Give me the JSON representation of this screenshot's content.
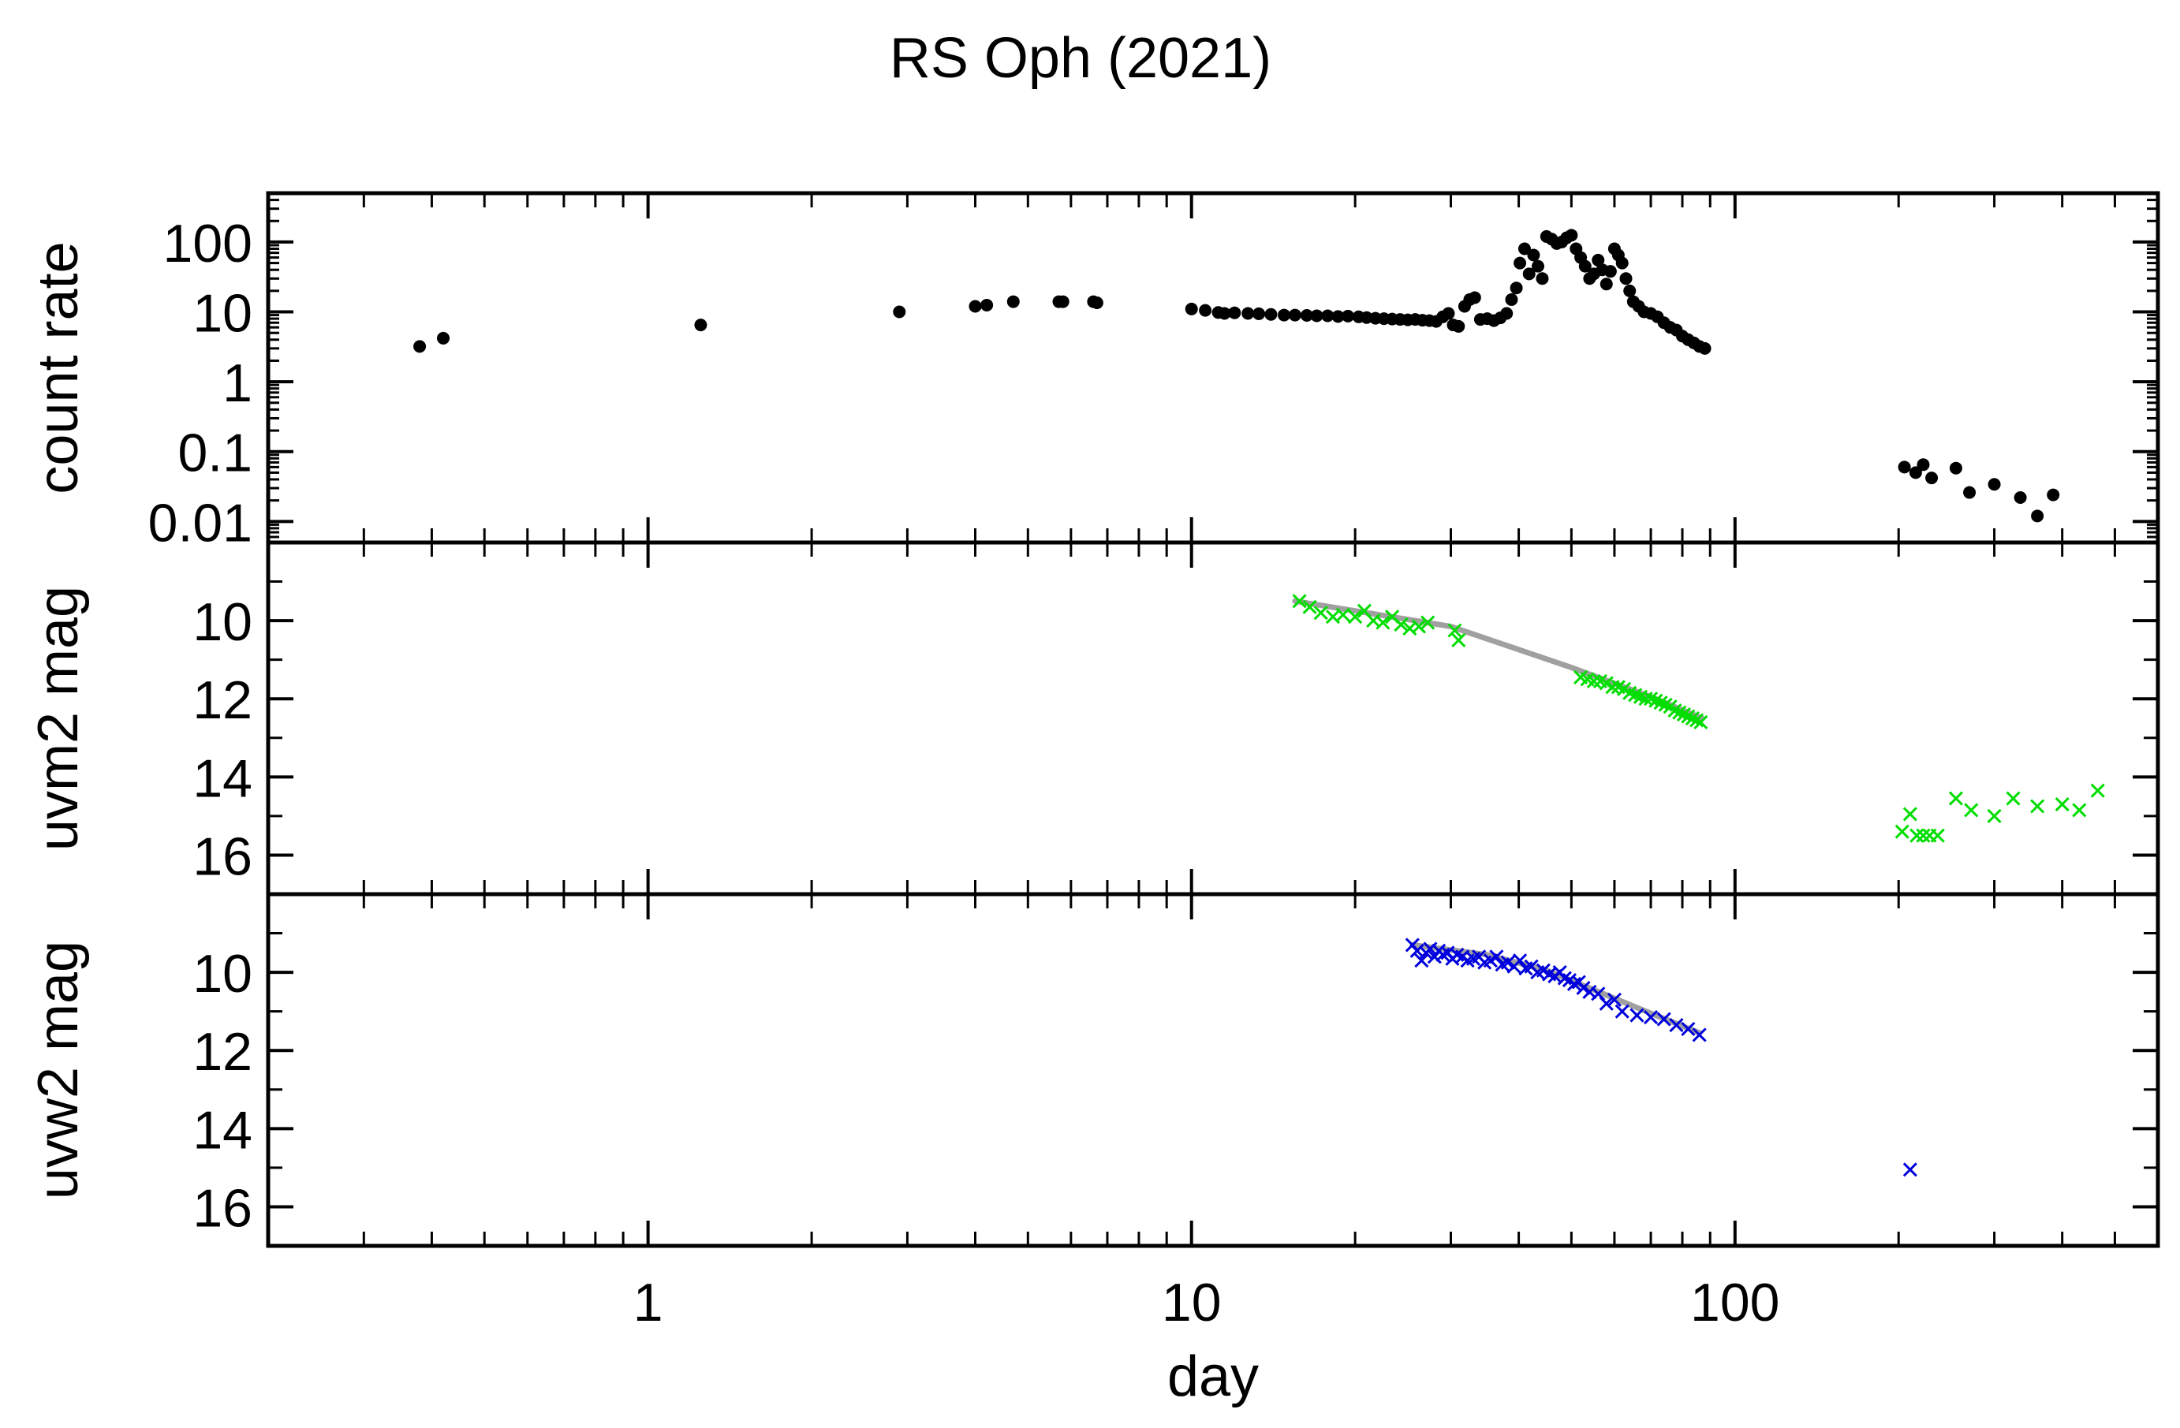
{
  "chart_data": {
    "title": "RS Oph (2021)",
    "xlabel": "day",
    "x_scale": "log",
    "xlim": [
      0.2,
      600
    ],
    "x_tick_labels": [
      "1",
      "10",
      "100"
    ],
    "panels": [
      {
        "id": "count",
        "type": "scatter",
        "ylabel": "count rate",
        "y_scale": "log",
        "ylim": [
          0.005,
          500
        ],
        "y_tick_labels": [
          "100",
          "10",
          "1",
          "0.1",
          "0.01"
        ],
        "series": [
          {
            "color": "#000000",
            "marker": "dot",
            "points": [
              [
                0.38,
                3.2
              ],
              [
                0.42,
                4.2
              ],
              [
                1.25,
                6.5
              ],
              [
                2.9,
                10
              ],
              [
                4.0,
                12
              ],
              [
                4.2,
                12.5
              ],
              [
                4.7,
                14
              ],
              [
                5.7,
                14
              ],
              [
                5.8,
                14
              ],
              [
                6.6,
                14
              ],
              [
                6.7,
                13.5
              ],
              [
                10.0,
                11
              ],
              [
                10.6,
                10.5
              ],
              [
                11.2,
                9.8
              ],
              [
                11.5,
                9.5
              ],
              [
                12.0,
                9.7
              ],
              [
                12.7,
                9.5
              ],
              [
                13.3,
                9.4
              ],
              [
                14.0,
                9.2
              ],
              [
                14.8,
                9.0
              ],
              [
                15.5,
                9.0
              ],
              [
                16.3,
                8.9
              ],
              [
                17.0,
                8.8
              ],
              [
                17.8,
                8.8
              ],
              [
                18.6,
                8.6
              ],
              [
                19.4,
                8.7
              ],
              [
                20.3,
                8.5
              ],
              [
                21.0,
                8.3
              ],
              [
                21.8,
                8.1
              ],
              [
                22.6,
                8.0
              ],
              [
                23.4,
                7.9
              ],
              [
                24.2,
                7.8
              ],
              [
                25.0,
                7.7
              ],
              [
                25.8,
                7.8
              ],
              [
                26.6,
                7.6
              ],
              [
                27.4,
                7.5
              ],
              [
                28.2,
                7.3
              ],
              [
                29.0,
                8.5
              ],
              [
                29.7,
                9.5
              ],
              [
                30.3,
                6.5
              ],
              [
                31.0,
                6.2
              ],
              [
                31.8,
                12
              ],
              [
                32.5,
                15
              ],
              [
                33.2,
                16
              ],
              [
                34.0,
                7.8
              ],
              [
                35.0,
                8.0
              ],
              [
                36.0,
                7.5
              ],
              [
                37.0,
                8.2
              ],
              [
                38.0,
                9.5
              ],
              [
                38.8,
                15
              ],
              [
                39.6,
                22
              ],
              [
                40.2,
                50
              ],
              [
                41.0,
                80
              ],
              [
                41.8,
                35
              ],
              [
                42.6,
                65
              ],
              [
                43.4,
                45
              ],
              [
                44.2,
                30
              ],
              [
                45.0,
                120
              ],
              [
                46.0,
                110
              ],
              [
                47.0,
                95
              ],
              [
                48.0,
                100
              ],
              [
                49.0,
                115
              ],
              [
                50.0,
                125
              ],
              [
                51.0,
                80
              ],
              [
                52.0,
                60
              ],
              [
                53.0,
                45
              ],
              [
                54.0,
                30
              ],
              [
                55.0,
                35
              ],
              [
                56.0,
                55
              ],
              [
                57.0,
                40
              ],
              [
                58.0,
                25
              ],
              [
                59.0,
                38
              ],
              [
                60.0,
                80
              ],
              [
                61.0,
                65
              ],
              [
                62.0,
                50
              ],
              [
                63.0,
                30
              ],
              [
                64.0,
                20
              ],
              [
                65.0,
                14
              ],
              [
                66.5,
                12
              ],
              [
                68.0,
                10
              ],
              [
                70.0,
                9.5
              ],
              [
                72.0,
                8.5
              ],
              [
                74.0,
                7.0
              ],
              [
                76.0,
                6.0
              ],
              [
                78.0,
                5.5
              ],
              [
                80.0,
                4.5
              ],
              [
                82.0,
                4.0
              ],
              [
                84.0,
                3.6
              ],
              [
                86.0,
                3.2
              ],
              [
                88.0,
                3.0
              ],
              [
                205,
                0.06
              ],
              [
                215,
                0.05
              ],
              [
                222,
                0.065
              ],
              [
                230,
                0.042
              ],
              [
                255,
                0.058
              ],
              [
                270,
                0.026
              ],
              [
                300,
                0.034
              ],
              [
                335,
                0.022
              ],
              [
                360,
                0.012
              ],
              [
                385,
                0.024
              ]
            ]
          }
        ]
      },
      {
        "id": "uvm2",
        "type": "scatter",
        "ylabel": "uvm2 mag",
        "y_inverted": true,
        "ylim": [
          8,
          17
        ],
        "y_tick_labels": [
          "10",
          "12",
          "14",
          "16"
        ],
        "series": [
          {
            "color": "#00dd00",
            "marker": "x",
            "points": [
              [
                15.8,
                9.5
              ],
              [
                16.5,
                9.65
              ],
              [
                17.3,
                9.8
              ],
              [
                18.2,
                9.9
              ],
              [
                19.0,
                9.85
              ],
              [
                20.0,
                9.9
              ],
              [
                20.8,
                9.75
              ],
              [
                21.6,
                10.0
              ],
              [
                22.5,
                10.05
              ],
              [
                23.4,
                9.9
              ],
              [
                24.3,
                10.1
              ],
              [
                25.2,
                10.2
              ],
              [
                26.2,
                10.15
              ],
              [
                27.2,
                10.05
              ],
              [
                30.5,
                10.25
              ],
              [
                31.0,
                10.5
              ],
              [
                52.0,
                11.45
              ],
              [
                53.5,
                11.5
              ],
              [
                55.0,
                11.55
              ],
              [
                56.5,
                11.55
              ],
              [
                58.0,
                11.6
              ],
              [
                59.5,
                11.7
              ],
              [
                61.0,
                11.7
              ],
              [
                62.5,
                11.75
              ],
              [
                64.0,
                11.85
              ],
              [
                65.5,
                11.9
              ],
              [
                67.0,
                11.95
              ],
              [
                68.5,
                12.0
              ],
              [
                70.0,
                12.0
              ],
              [
                71.5,
                12.05
              ],
              [
                73.0,
                12.1
              ],
              [
                74.5,
                12.15
              ],
              [
                76.0,
                12.2
              ],
              [
                77.5,
                12.3
              ],
              [
                79.0,
                12.35
              ],
              [
                80.5,
                12.4
              ],
              [
                82.0,
                12.45
              ],
              [
                83.5,
                12.5
              ],
              [
                85.0,
                12.55
              ],
              [
                86.5,
                12.6
              ],
              [
                203,
                15.4
              ],
              [
                210,
                14.95
              ],
              [
                216,
                15.5
              ],
              [
                222,
                15.5
              ],
              [
                228,
                15.5
              ],
              [
                236,
                15.5
              ],
              [
                255,
                14.55
              ],
              [
                272,
                14.85
              ],
              [
                300,
                15.0
              ],
              [
                325,
                14.55
              ],
              [
                360,
                14.75
              ],
              [
                400,
                14.7
              ],
              [
                430,
                14.85
              ],
              [
                465,
                14.35
              ]
            ]
          }
        ],
        "fit": {
          "color": "#a0a0a0",
          "points": [
            [
              15.5,
              9.5
            ],
            [
              30,
              10.15
            ],
            [
              50,
              11.2
            ],
            [
              70,
              11.95
            ],
            [
              87,
              12.5
            ]
          ]
        }
      },
      {
        "id": "uvw2",
        "type": "scatter",
        "ylabel": "uvw2 mag",
        "y_inverted": true,
        "ylim": [
          8,
          17
        ],
        "y_tick_labels": [
          "10",
          "12",
          "14",
          "16"
        ],
        "series": [
          {
            "color": "#0000dd",
            "marker": "x",
            "points": [
              [
                25.5,
                9.3
              ],
              [
                26.0,
                9.45
              ],
              [
                26.5,
                9.7
              ],
              [
                27.0,
                9.5
              ],
              [
                27.5,
                9.4
              ],
              [
                28.0,
                9.6
              ],
              [
                28.5,
                9.45
              ],
              [
                29.0,
                9.55
              ],
              [
                29.6,
                9.5
              ],
              [
                30.2,
                9.65
              ],
              [
                30.8,
                9.55
              ],
              [
                31.5,
                9.6
              ],
              [
                32.2,
                9.7
              ],
              [
                33.0,
                9.65
              ],
              [
                33.8,
                9.6
              ],
              [
                34.6,
                9.75
              ],
              [
                35.5,
                9.7
              ],
              [
                36.4,
                9.6
              ],
              [
                37.3,
                9.8
              ],
              [
                38.2,
                9.75
              ],
              [
                39.2,
                9.85
              ],
              [
                40.2,
                9.7
              ],
              [
                41.2,
                9.9
              ],
              [
                42.2,
                9.85
              ],
              [
                43.3,
                10.0
              ],
              [
                44.4,
                9.95
              ],
              [
                45.5,
                10.05
              ],
              [
                46.6,
                10.1
              ],
              [
                47.6,
                10.0
              ],
              [
                48.6,
                10.15
              ],
              [
                49.6,
                10.2
              ],
              [
                50.6,
                10.3
              ],
              [
                51.6,
                10.25
              ],
              [
                52.6,
                10.4
              ],
              [
                54.0,
                10.5
              ],
              [
                56.0,
                10.55
              ],
              [
                58.0,
                10.8
              ],
              [
                60.0,
                10.7
              ],
              [
                62.0,
                11.0
              ],
              [
                66.0,
                11.1
              ],
              [
                70.0,
                11.15
              ],
              [
                74.0,
                11.2
              ],
              [
                78.0,
                11.35
              ],
              [
                82.0,
                11.45
              ],
              [
                86.0,
                11.6
              ],
              [
                210,
                15.05
              ]
            ]
          }
        ],
        "fit": {
          "color": "#a0a0a0",
          "points": [
            [
              25.5,
              9.3
            ],
            [
              35,
              9.55
            ],
            [
              45,
              9.95
            ],
            [
              55,
              10.45
            ],
            [
              70,
              11.05
            ],
            [
              86,
              11.55
            ]
          ]
        }
      }
    ]
  }
}
